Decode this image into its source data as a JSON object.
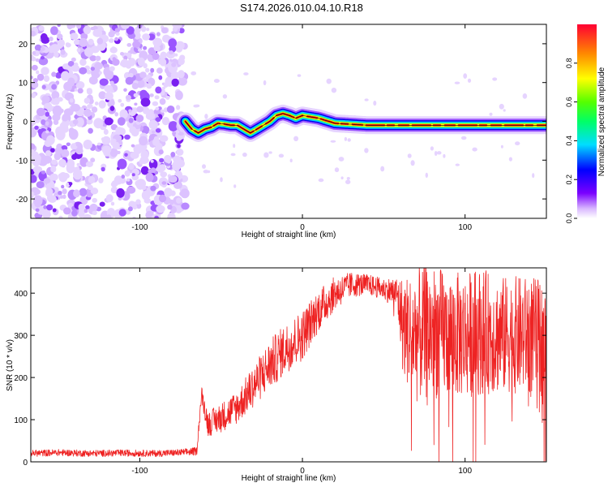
{
  "title": "S174.2026.010.04.10.R18",
  "colors": {
    "signal": "#ee2222",
    "background": "#ffffff",
    "axis": "#000000"
  },
  "chart_data": [
    {
      "type": "heatmap",
      "title": "S174.2026.010.04.10.R18",
      "xlabel": "Height of straight line (km)",
      "ylabel": "Frequency (Hz)",
      "xlim": [
        -167,
        150
      ],
      "ylim": [
        -25,
        25
      ],
      "xticks": [
        -100,
        0,
        100
      ],
      "yticks": [
        -20,
        -10,
        0,
        10,
        20
      ],
      "noise_region_x": [
        -167,
        -72
      ],
      "ridge": {
        "x": [
          -72,
          -68,
          -64,
          -60,
          -56,
          -52,
          -48,
          -44,
          -40,
          -36,
          -32,
          -28,
          -24,
          -20,
          -16,
          -12,
          -8,
          -4,
          0,
          10,
          20,
          40,
          60,
          80,
          100,
          120,
          150
        ],
        "frequency": [
          0,
          -2,
          -3,
          -2,
          -1.5,
          -0.5,
          -0.7,
          -1,
          -1,
          -2,
          -3,
          -2,
          -1,
          0,
          1.5,
          2,
          1.5,
          0.8,
          1.5,
          0.8,
          -0.5,
          -1,
          -1,
          -1,
          -1,
          -1,
          -1
        ]
      },
      "colorbar": {
        "label": "Normalized spectral amplitude",
        "range": [
          0,
          1
        ],
        "ticks": [
          "0.0",
          "0.2",
          "0.4",
          "0.6",
          "0.8"
        ]
      }
    },
    {
      "type": "line",
      "xlabel": "Height of straight line (km)",
      "ylabel": "SNR (10 * v/v)",
      "xlim": [
        -167,
        150
      ],
      "ylim": [
        0,
        460
      ],
      "xticks": [
        -100,
        0,
        100
      ],
      "yticks": [
        0,
        100,
        200,
        300,
        400
      ],
      "series": [
        {
          "name": "SNR",
          "x": [
            -167,
            -150,
            -130,
            -110,
            -90,
            -75,
            -65,
            -62,
            -58,
            -50,
            -40,
            -30,
            -20,
            -10,
            0,
            10,
            20,
            30,
            40,
            50,
            58,
            62,
            70,
            80,
            90,
            100,
            110,
            120,
            130,
            140,
            150
          ],
          "y": [
            20,
            22,
            20,
            21,
            20,
            22,
            25,
            160,
            90,
            105,
            130,
            180,
            230,
            270,
            300,
            360,
            400,
            420,
            420,
            410,
            400,
            320,
            300,
            310,
            300,
            300,
            310,
            300,
            300,
            300,
            290
          ],
          "spread": [
            8,
            8,
            8,
            8,
            8,
            8,
            10,
            20,
            30,
            35,
            40,
            50,
            60,
            60,
            60,
            50,
            40,
            30,
            25,
            25,
            40,
            120,
            160,
            160,
            150,
            150,
            150,
            140,
            140,
            140,
            140
          ]
        }
      ]
    }
  ]
}
